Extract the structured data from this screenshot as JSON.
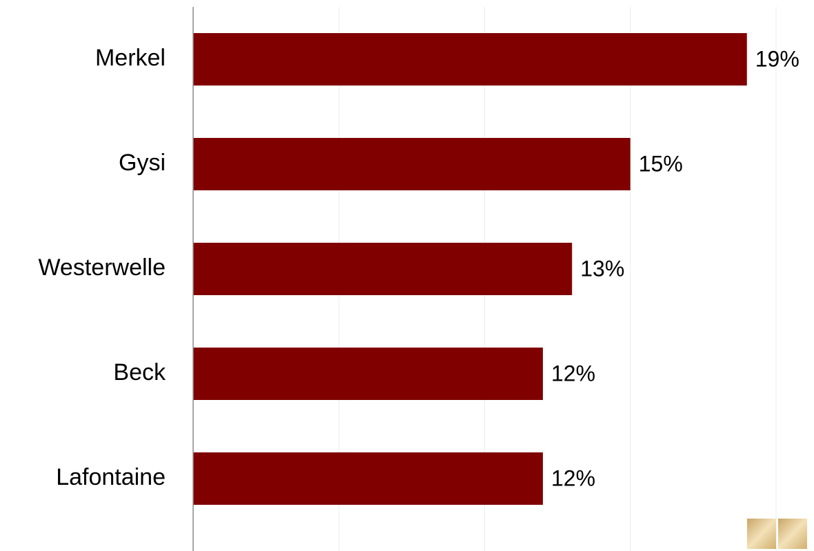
{
  "chart_data": {
    "type": "bar",
    "orientation": "horizontal",
    "categories": [
      "Merkel",
      "Gysi",
      "Westerwelle",
      "Beck",
      "Lafontaine"
    ],
    "values": [
      19,
      15,
      13,
      12,
      12
    ],
    "value_labels": [
      "19%",
      "15%",
      "13%",
      "12%",
      "12%"
    ],
    "color": "#800000",
    "xlim": [
      0,
      20
    ],
    "xticks": [
      0,
      5,
      10,
      15,
      20
    ],
    "grid": true
  }
}
